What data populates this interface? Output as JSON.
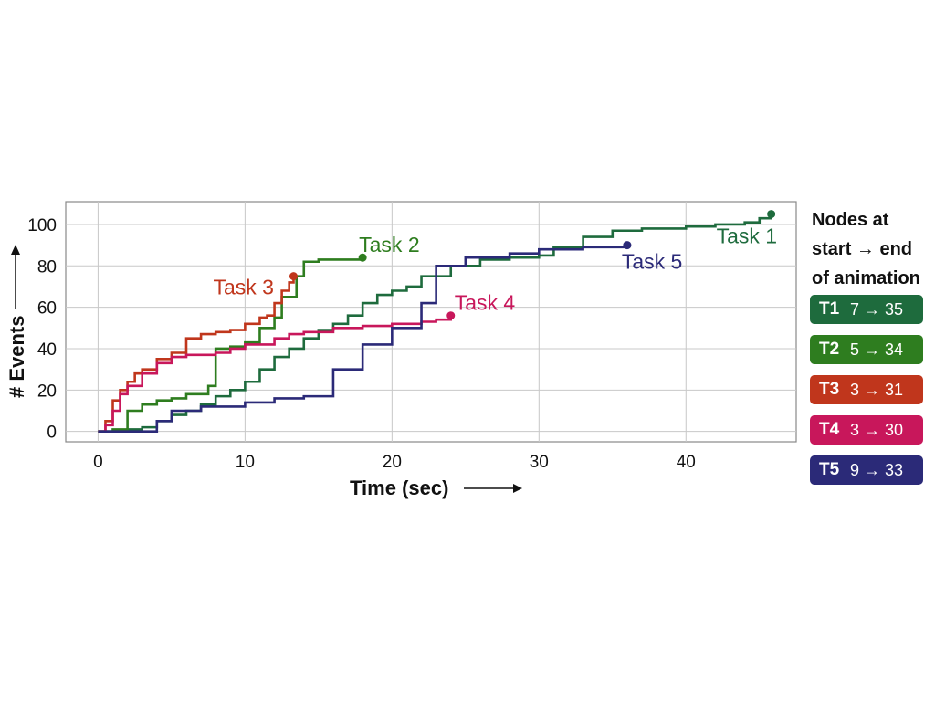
{
  "chart_data": {
    "type": "line",
    "xlabel": "Time (sec)",
    "ylabel": "# Events",
    "xlim": [
      -2.2,
      47.5
    ],
    "ylim": [
      -5,
      111
    ],
    "x_ticks": [
      0,
      10,
      20,
      30,
      40
    ],
    "y_ticks": [
      0,
      20,
      40,
      60,
      80,
      100
    ],
    "grid": true,
    "series": [
      {
        "name": "Task 1",
        "color": "#1e6b3d",
        "points": [
          [
            0,
            0
          ],
          [
            2,
            1
          ],
          [
            3,
            2
          ],
          [
            4,
            5
          ],
          [
            5,
            8
          ],
          [
            6,
            10
          ],
          [
            7,
            13
          ],
          [
            8,
            17
          ],
          [
            9,
            20
          ],
          [
            10,
            24
          ],
          [
            11,
            30
          ],
          [
            12,
            36
          ],
          [
            13,
            40
          ],
          [
            14,
            45
          ],
          [
            15,
            49
          ],
          [
            16,
            52
          ],
          [
            17,
            56
          ],
          [
            18,
            62
          ],
          [
            19,
            66
          ],
          [
            20,
            68
          ],
          [
            21,
            70
          ],
          [
            22,
            75
          ],
          [
            24,
            80
          ],
          [
            26,
            83
          ],
          [
            28,
            84
          ],
          [
            30,
            85
          ],
          [
            31,
            89
          ],
          [
            33,
            94
          ],
          [
            35,
            97
          ],
          [
            37,
            98
          ],
          [
            40,
            99
          ],
          [
            42,
            100
          ],
          [
            44,
            101
          ],
          [
            45,
            103
          ],
          [
            45.8,
            105
          ]
        ]
      },
      {
        "name": "Task 2",
        "color": "#2e7d1f",
        "points": [
          [
            0,
            0
          ],
          [
            1,
            1
          ],
          [
            2,
            10
          ],
          [
            3,
            13
          ],
          [
            4,
            15
          ],
          [
            5,
            16
          ],
          [
            6,
            18
          ],
          [
            7.5,
            22
          ],
          [
            8,
            40
          ],
          [
            9,
            41
          ],
          [
            10,
            43
          ],
          [
            11,
            50
          ],
          [
            12,
            55
          ],
          [
            12.5,
            65
          ],
          [
            13.5,
            75
          ],
          [
            14,
            82
          ],
          [
            15,
            83
          ],
          [
            18,
            84
          ]
        ]
      },
      {
        "name": "Task 3",
        "color": "#c0361c",
        "points": [
          [
            0,
            0
          ],
          [
            0.5,
            5
          ],
          [
            1,
            15
          ],
          [
            1.5,
            20
          ],
          [
            2,
            24
          ],
          [
            2.5,
            28
          ],
          [
            3,
            30
          ],
          [
            4,
            35
          ],
          [
            5,
            38
          ],
          [
            6,
            45
          ],
          [
            7,
            47
          ],
          [
            8,
            48
          ],
          [
            9,
            49
          ],
          [
            10,
            52
          ],
          [
            11,
            55
          ],
          [
            11.5,
            56
          ],
          [
            12,
            62
          ],
          [
            12.5,
            68
          ],
          [
            13,
            72
          ],
          [
            13.3,
            75
          ]
        ]
      },
      {
        "name": "Task 4",
        "color": "#c8175b",
        "points": [
          [
            0,
            0
          ],
          [
            0.5,
            3
          ],
          [
            1,
            10
          ],
          [
            1.5,
            18
          ],
          [
            2,
            22
          ],
          [
            3,
            28
          ],
          [
            4,
            33
          ],
          [
            5,
            36
          ],
          [
            6,
            37
          ],
          [
            8,
            38
          ],
          [
            9,
            40
          ],
          [
            10,
            42
          ],
          [
            12,
            45
          ],
          [
            13,
            47
          ],
          [
            14,
            48
          ],
          [
            16,
            50
          ],
          [
            18,
            51
          ],
          [
            20,
            52
          ],
          [
            22,
            53
          ],
          [
            23,
            54
          ],
          [
            24,
            56
          ]
        ]
      },
      {
        "name": "Task 5",
        "color": "#2b2a78",
        "points": [
          [
            0,
            0
          ],
          [
            4,
            5
          ],
          [
            5,
            10
          ],
          [
            7,
            12
          ],
          [
            10,
            14
          ],
          [
            12,
            16
          ],
          [
            14,
            17
          ],
          [
            16,
            18
          ],
          [
            16,
            30
          ],
          [
            18,
            32
          ],
          [
            18,
            42
          ],
          [
            20,
            44
          ],
          [
            20,
            50
          ],
          [
            22,
            52
          ],
          [
            22,
            62
          ],
          [
            23,
            64
          ],
          [
            23,
            80
          ],
          [
            25,
            84
          ],
          [
            28,
            86
          ],
          [
            30,
            88
          ],
          [
            33,
            89
          ],
          [
            36,
            90
          ]
        ]
      }
    ],
    "labels": [
      {
        "text": "Task 1",
        "series": 0
      },
      {
        "text": "Task 2",
        "series": 1
      },
      {
        "text": "Task 3",
        "series": 2
      },
      {
        "text": "Task 4",
        "series": 3
      },
      {
        "text": "Task 5",
        "series": 4
      }
    ],
    "legend": {
      "title_lines": [
        "Nodes at",
        "start → end",
        "of animation"
      ],
      "entries": [
        {
          "id": "T1",
          "value": "7 → 35",
          "color": "#1e6b3d"
        },
        {
          "id": "T2",
          "value": "5 → 34",
          "color": "#2e7d1f"
        },
        {
          "id": "T3",
          "value": "3 → 31",
          "color": "#c0361c"
        },
        {
          "id": "T4",
          "value": "3 → 30",
          "color": "#c8175b"
        },
        {
          "id": "T5",
          "value": "9 → 33",
          "color": "#2b2a78"
        }
      ],
      "placement": "right"
    }
  }
}
